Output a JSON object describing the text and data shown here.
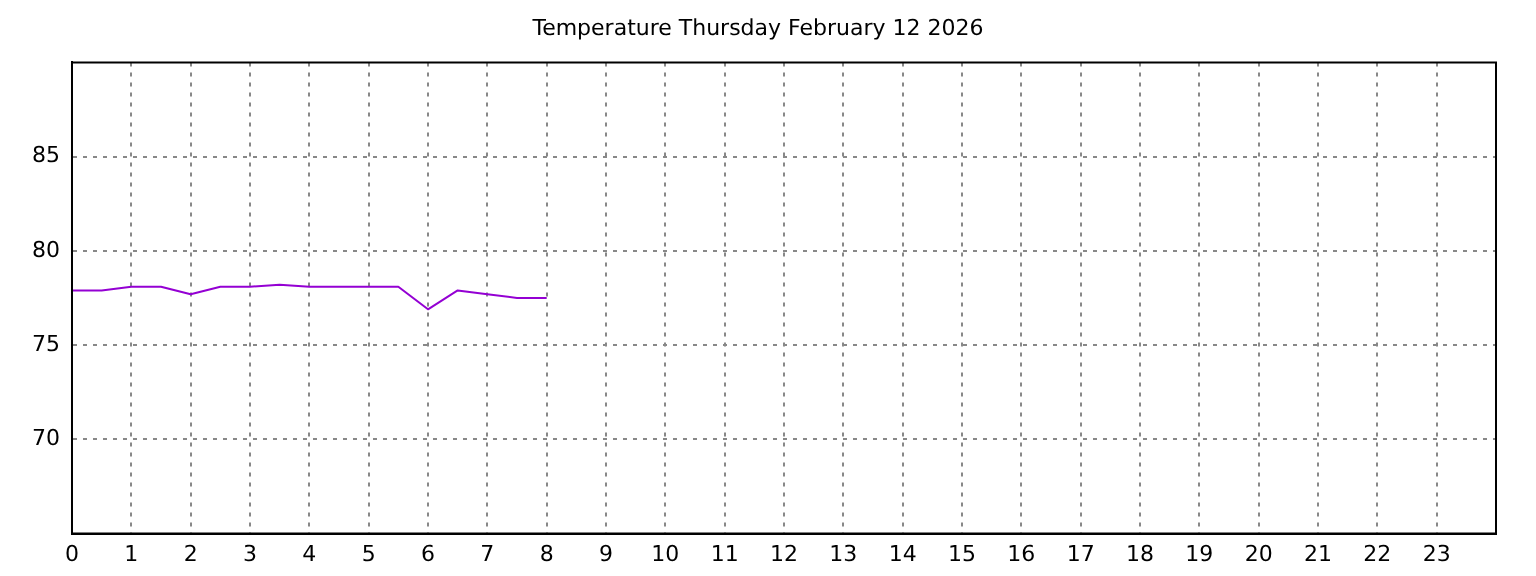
{
  "chart_data": {
    "type": "line",
    "title": "Temperature Thursday February 12 2026",
    "x": [
      0,
      0.5,
      1,
      1.5,
      2,
      2.5,
      3,
      3.5,
      4,
      4.5,
      5,
      5.5,
      6,
      6.5,
      7,
      7.5,
      8
    ],
    "series": [
      {
        "color": "#9400d3",
        "values": [
          77.9,
          77.9,
          78.1,
          78.1,
          77.7,
          78.1,
          78.1,
          78.2,
          78.1,
          78.1,
          78.1,
          78.1,
          76.9,
          77.9,
          77.7,
          77.5,
          77.5
        ]
      }
    ],
    "xlim": [
      0,
      24
    ],
    "xticks": [
      0,
      1,
      2,
      3,
      4,
      5,
      6,
      7,
      8,
      9,
      10,
      11,
      12,
      13,
      14,
      15,
      16,
      17,
      18,
      19,
      20,
      21,
      22,
      23
    ],
    "ylim": [
      65,
      90
    ],
    "yticks": [
      70,
      75,
      80,
      85
    ],
    "grid": true,
    "legend": false,
    "marker": "none",
    "line_style": "solid"
  }
}
